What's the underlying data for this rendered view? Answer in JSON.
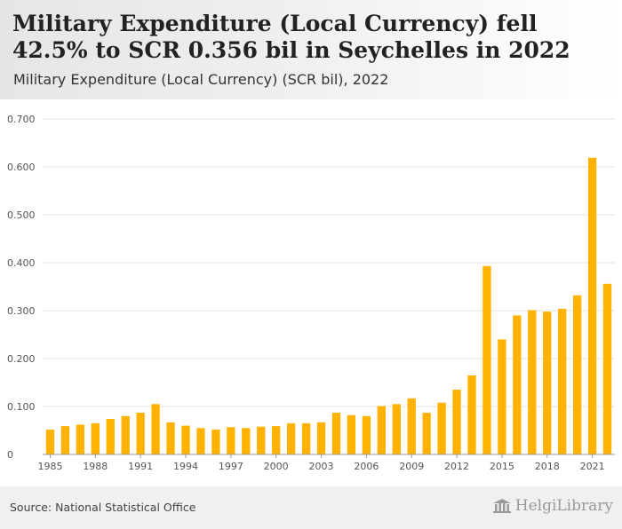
{
  "header": {
    "title": "Military Expenditure (Local Currency) fell 42.5% to SCR 0.356 bil in Seychelles in 2022",
    "subtitle": "Military Expenditure (Local Currency) (SCR bil), 2022"
  },
  "footer": {
    "source": "Source: National Statistical Office",
    "brand": "HelgiLibrary",
    "brand_icon": "library-building-icon"
  },
  "colors": {
    "bar": "#FFB300",
    "grid": "#e3e3e3",
    "axis_text": "#555555",
    "footer_bg": "#f0f0f0"
  },
  "chart_data": {
    "type": "bar",
    "x": [
      1985,
      1986,
      1987,
      1988,
      1989,
      1990,
      1991,
      1992,
      1993,
      1994,
      1995,
      1996,
      1997,
      1998,
      1999,
      2000,
      2001,
      2002,
      2003,
      2004,
      2005,
      2006,
      2007,
      2008,
      2009,
      2010,
      2011,
      2012,
      2013,
      2014,
      2015,
      2016,
      2017,
      2018,
      2019,
      2020,
      2021,
      2022
    ],
    "values": [
      0.052,
      0.059,
      0.062,
      0.065,
      0.074,
      0.08,
      0.087,
      0.105,
      0.067,
      0.06,
      0.055,
      0.052,
      0.057,
      0.055,
      0.058,
      0.059,
      0.065,
      0.065,
      0.067,
      0.087,
      0.082,
      0.08,
      0.101,
      0.105,
      0.117,
      0.087,
      0.108,
      0.135,
      0.165,
      0.393,
      0.24,
      0.29,
      0.301,
      0.298,
      0.304,
      0.332,
      0.619,
      0.356
    ],
    "x_tick_labels": [
      "1985",
      "1988",
      "1991",
      "1994",
      "1997",
      "2000",
      "2003",
      "2006",
      "2009",
      "2012",
      "2015",
      "2018",
      "2021"
    ],
    "y_tick_labels": [
      "0",
      "0.100",
      "0.200",
      "0.300",
      "0.400",
      "0.500",
      "0.600",
      "0.700"
    ],
    "ylim": [
      0,
      0.7
    ],
    "grid": true,
    "legend": "none",
    "xlabel": "",
    "ylabel": ""
  }
}
